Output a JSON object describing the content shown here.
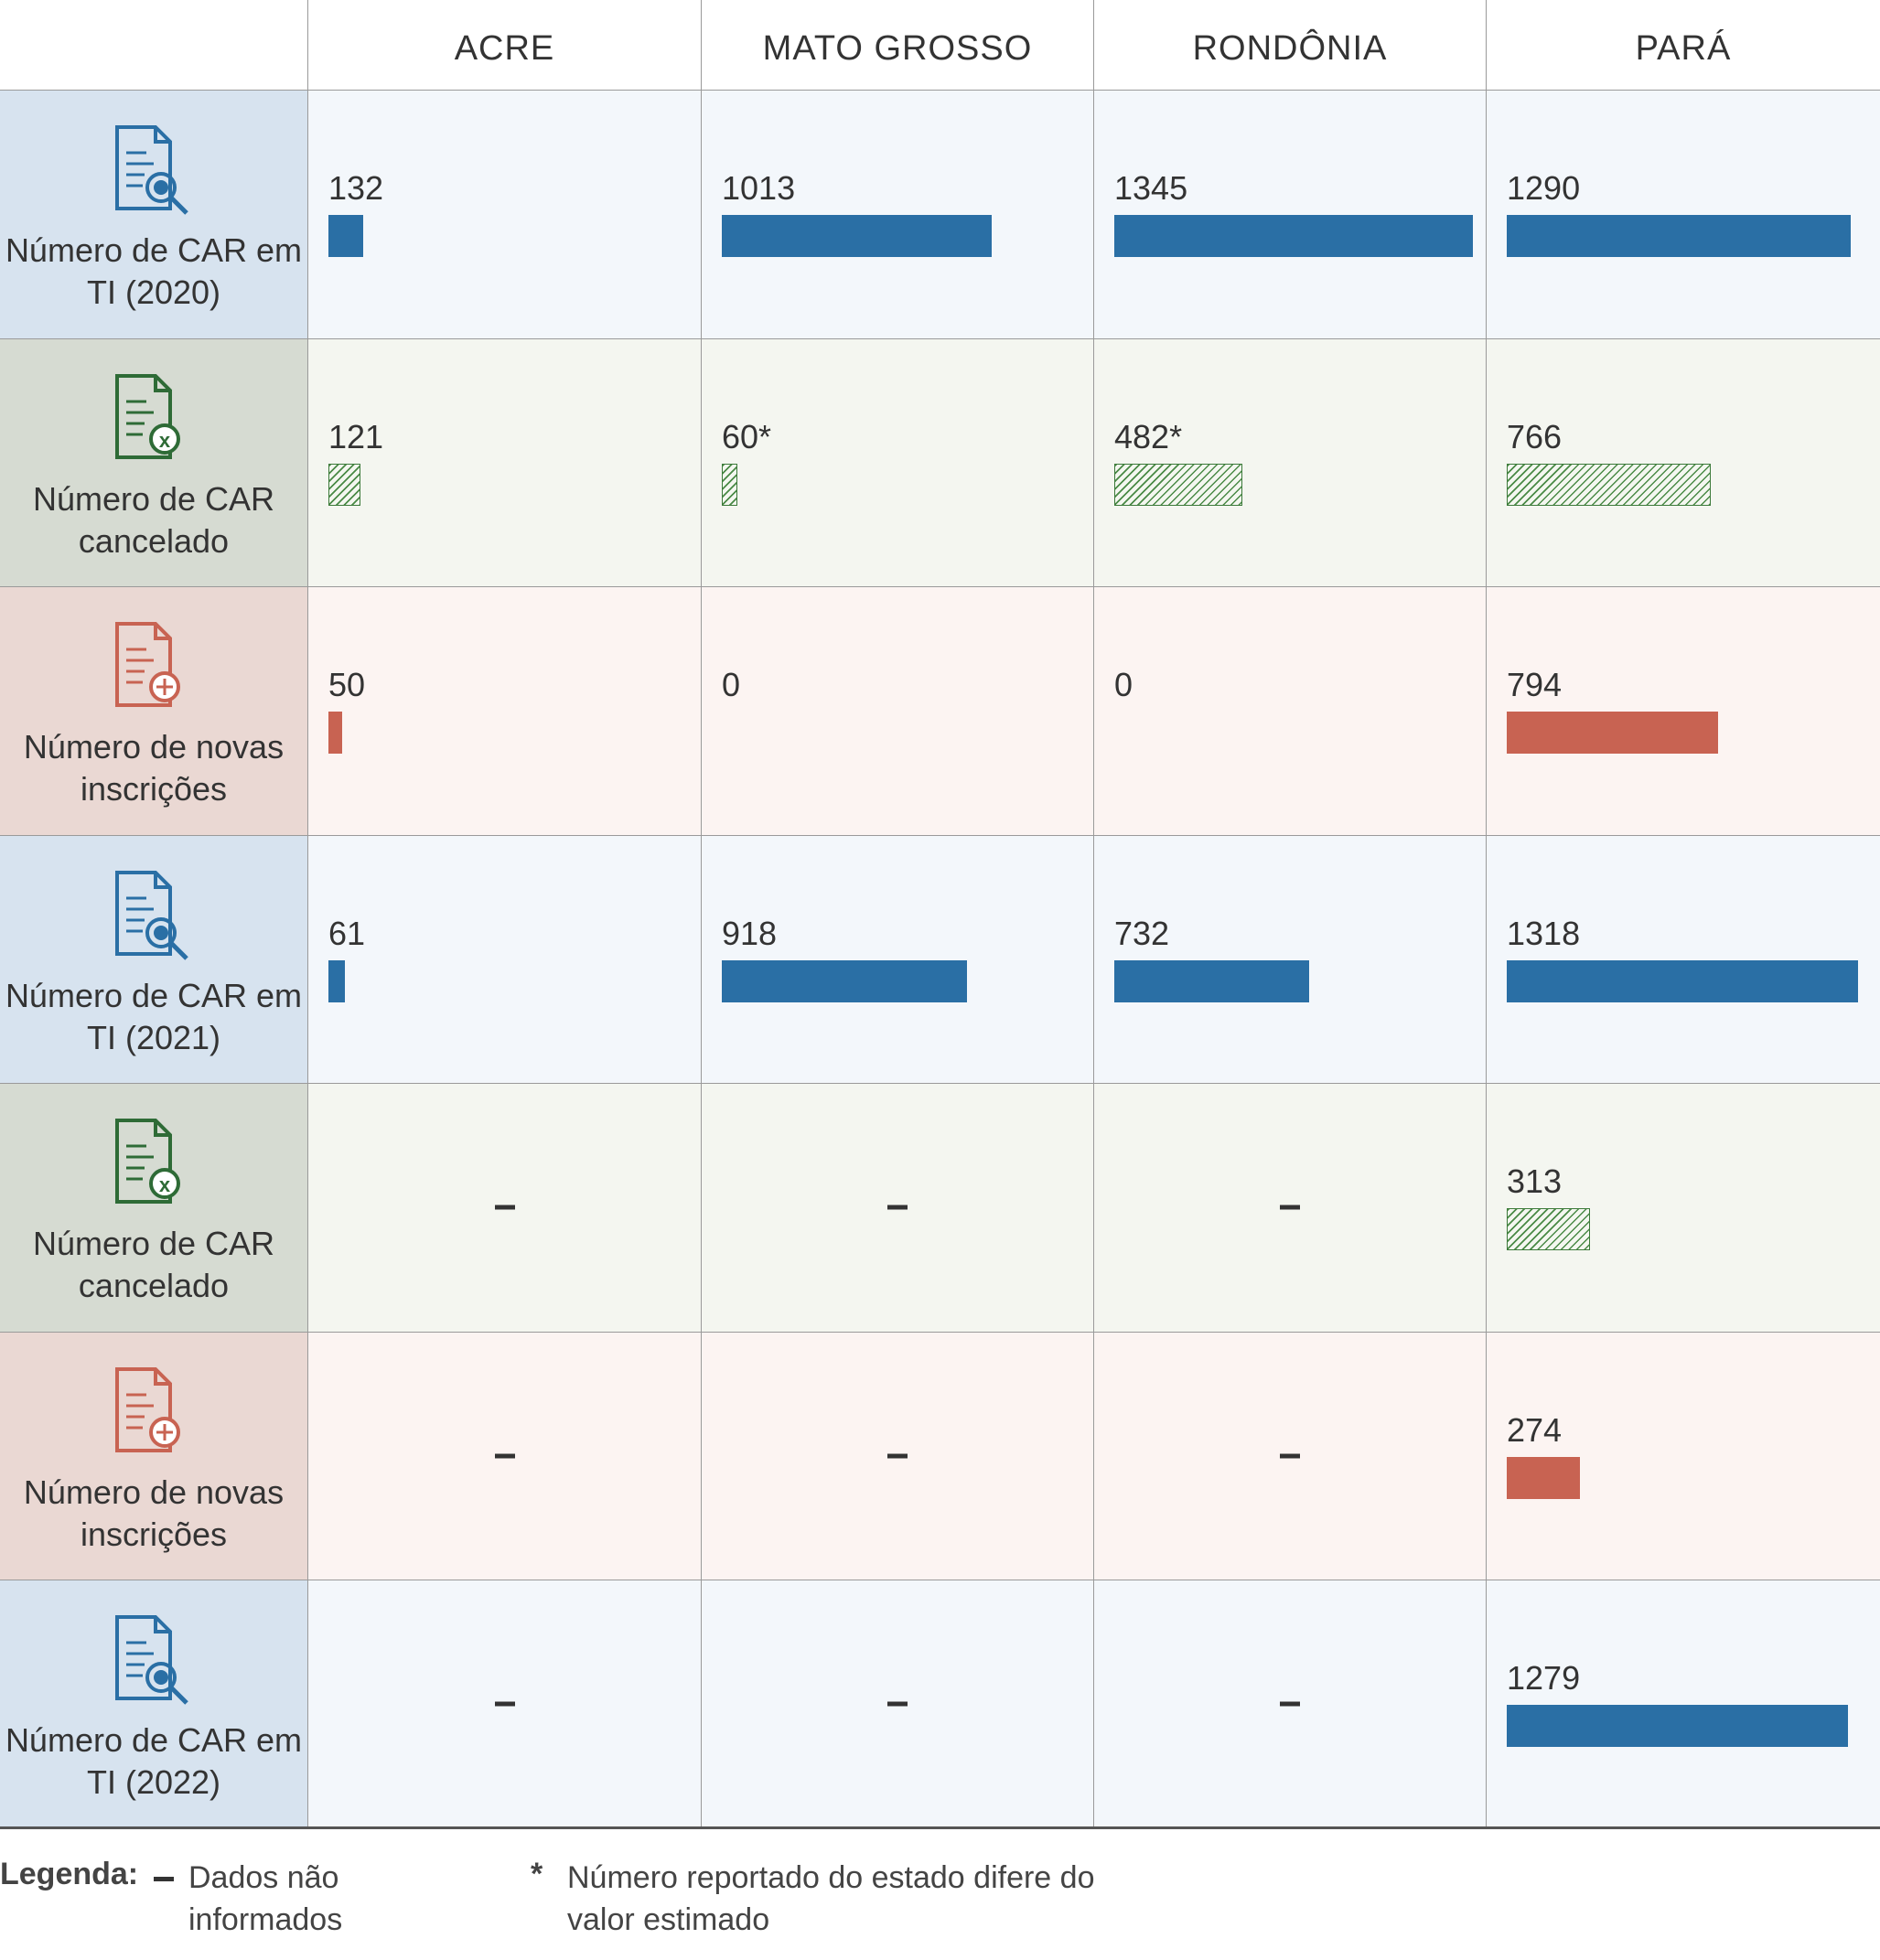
{
  "columns": [
    "ACRE",
    "MATO GROSSO",
    "RONDÔNIA",
    "PARÁ"
  ],
  "rows": [
    {
      "label": "Número de CAR em TI (2020)",
      "kind": "ti",
      "values": [
        "132",
        "1013",
        "1345",
        "1290"
      ]
    },
    {
      "label": "Número de CAR cancelado",
      "kind": "cancel",
      "values": [
        "121",
        "60*",
        "482*",
        "766"
      ]
    },
    {
      "label": "Número de novas inscrições",
      "kind": "new",
      "values": [
        "50",
        "0",
        "0",
        "794"
      ]
    },
    {
      "label": "Número de CAR em TI (2021)",
      "kind": "ti",
      "values": [
        "61",
        "918",
        "732",
        "1318"
      ]
    },
    {
      "label": "Número de CAR cancelado",
      "kind": "cancel",
      "values": [
        "–",
        "–",
        "–",
        "313"
      ]
    },
    {
      "label": "Número de novas inscrições",
      "kind": "new",
      "values": [
        "–",
        "–",
        "–",
        "274"
      ]
    },
    {
      "label": "Número de CAR em TI (2022)",
      "kind": "ti",
      "values": [
        "–",
        "–",
        "–",
        "1279"
      ]
    }
  ],
  "colors": {
    "ti_bar": "#2a6fa5",
    "ti_icon": "#2a6fa5",
    "ti_head_bg": "#d7e3ef",
    "ti_cell_bg": "#f3f7fb",
    "cancel_icon": "#2e6b36",
    "cancel_head_bg": "#d6dbd2",
    "cancel_cell_bg": "#f4f6f0",
    "new_bar": "#c86352",
    "new_icon": "#c86352",
    "new_head_bg": "#ead8d3",
    "new_cell_bg": "#fcf4f2"
  },
  "icons": {
    "ti": "document-search-icon",
    "cancel": "document-cancel-icon",
    "new": "document-add-icon"
  },
  "legend": {
    "title": "Legenda:",
    "dash_label": "Dados não informados",
    "asterisk_symbol": "*",
    "asterisk_label": "Número reportado do estado difere do valor estimado"
  },
  "chart_data": {
    "type": "table",
    "categories": [
      "ACRE",
      "MATO GROSSO",
      "RONDÔNIA",
      "PARÁ"
    ],
    "series": [
      {
        "name": "Número de CAR em TI (2020)",
        "values": [
          132,
          1013,
          1345,
          1290
        ]
      },
      {
        "name": "Número de CAR cancelado",
        "values": [
          121,
          60,
          482,
          766
        ]
      },
      {
        "name": "Número de novas inscrições",
        "values": [
          50,
          0,
          0,
          794
        ]
      },
      {
        "name": "Número de CAR em TI (2021)",
        "values": [
          61,
          918,
          732,
          1318
        ]
      },
      {
        "name": "Número de CAR cancelado",
        "values": [
          null,
          null,
          null,
          313
        ]
      },
      {
        "name": "Número de novas inscrições",
        "values": [
          null,
          null,
          null,
          274
        ]
      },
      {
        "name": "Número de CAR em TI (2022)",
        "values": [
          null,
          null,
          null,
          1279
        ]
      }
    ],
    "max_value": 1345
  }
}
